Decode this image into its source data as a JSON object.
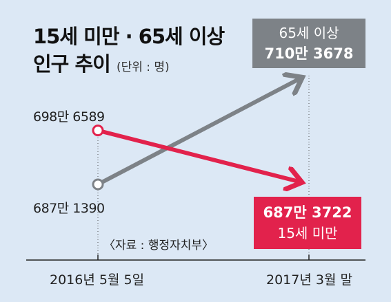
{
  "title": {
    "line1": "15세 미만 · 65세 이상",
    "line2": "인구 추이",
    "unit": "(단위 : 명)"
  },
  "source": "〈자료 : 행정자치부〉",
  "colors": {
    "background": "#dce8f5",
    "gray": "#7d8287",
    "red": "#e2224c"
  },
  "chart_data": {
    "type": "line",
    "x": [
      "2016년 5월 5일",
      "2017년 3월 말"
    ],
    "series": [
      {
        "name": "65세 이상",
        "values": [
          6871390,
          7103678
        ],
        "start_label": "687만 1390",
        "end_label": "710만 3678",
        "color": "#7d8287"
      },
      {
        "name": "15세 미만",
        "values": [
          6986589,
          6873722
        ],
        "start_label": "698만 6589",
        "end_label": "687만 3722",
        "color": "#e2224c"
      }
    ]
  }
}
